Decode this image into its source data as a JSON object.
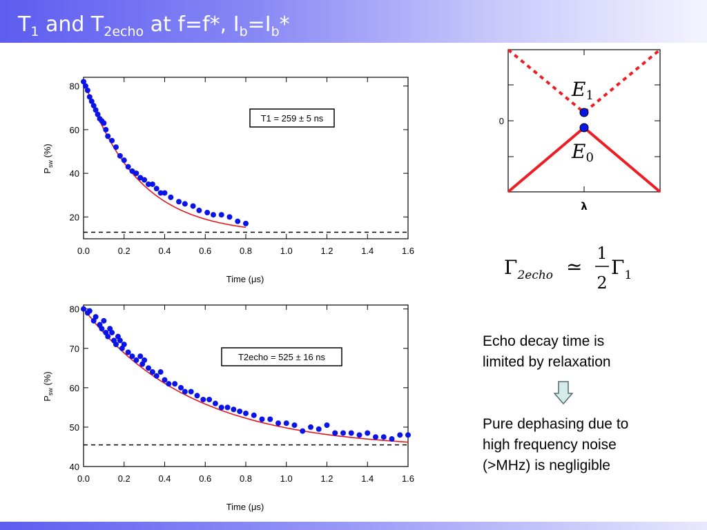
{
  "slide": {
    "title_parts": {
      "t": "T",
      "sub1": "1",
      "and": " and T",
      "sub2": "2echo",
      "mid": " at f=f*, I",
      "sub3": "b",
      "eq": "=I",
      "sub4": "b",
      "end": "*"
    },
    "formula": {
      "lhs": "Γ",
      "lhs_sub": "2echo",
      "rel": "≃",
      "num": "1",
      "den": "2",
      "rhs": "Γ",
      "rhs_sub": "1"
    },
    "note1_lines": [
      "Echo decay time is",
      "limited by relaxation"
    ],
    "note2_lines": [
      "Pure dephasing due to",
      "high frequency noise",
      "(>MHz) is negligible"
    ],
    "colors": {
      "points": "#0a14e6",
      "fit": "#e8141c",
      "energy": "#ee1c24",
      "title_bar": "#5d5df0"
    }
  },
  "chart_data": [
    {
      "type": "scatter",
      "xlabel": "Time (μs)",
      "ylabel": "Psw (%)",
      "ylabel_main": "P",
      "ylabel_sub": "sw",
      "ylabel_unit": " (%)",
      "xlim": [
        0,
        1.6
      ],
      "ylim": [
        10,
        84
      ],
      "xticks": [
        "0.0",
        "0.2",
        "0.4",
        "0.6",
        "0.8",
        "1.0",
        "1.2",
        "1.4",
        "1.6"
      ],
      "yticks": [
        "20",
        "40",
        "60",
        "80"
      ],
      "annotation": "T1 = 259 ± 5 ns",
      "baseline": 13,
      "fit": {
        "a": 71,
        "tau": 0.259,
        "c": 12
      },
      "series": [
        {
          "kind": "data",
          "x": [
            0.0,
            0.01,
            0.02,
            0.03,
            0.04,
            0.05,
            0.06,
            0.07,
            0.08,
            0.09,
            0.1,
            0.11,
            0.12,
            0.14,
            0.16,
            0.18,
            0.2,
            0.22,
            0.24,
            0.26,
            0.28,
            0.3,
            0.32,
            0.34,
            0.36,
            0.38,
            0.4,
            0.43,
            0.47,
            0.5,
            0.54,
            0.57,
            0.61,
            0.64,
            0.68,
            0.72,
            0.76,
            0.8
          ],
          "y": [
            82,
            80,
            78,
            75,
            73,
            71,
            69,
            67,
            65,
            64,
            63,
            60,
            57,
            55,
            52,
            48,
            46,
            43,
            41,
            40,
            38,
            37,
            35,
            35,
            33,
            31,
            31,
            29,
            27,
            26,
            25,
            23,
            22,
            21,
            21,
            20,
            18,
            17
          ]
        }
      ]
    },
    {
      "type": "scatter",
      "xlabel": "Time (μs)",
      "ylabel": "Psw (%)",
      "ylabel_main": "P",
      "ylabel_sub": "sw",
      "ylabel_unit": " (%)",
      "xlim": [
        0,
        1.6
      ],
      "ylim": [
        40,
        81
      ],
      "xticks": [
        "0.0",
        "0.2",
        "0.4",
        "0.6",
        "0.8",
        "1.0",
        "1.2",
        "1.4",
        "1.6"
      ],
      "yticks": [
        "40",
        "50",
        "60",
        "70",
        "80"
      ],
      "annotation": "T2echo = 525 ± 16 ns",
      "baseline": 45.5,
      "fit": {
        "a": 35.6,
        "tau": 0.525,
        "c": 44.5
      },
      "series": [
        {
          "kind": "data",
          "x": [
            0.0,
            0.02,
            0.03,
            0.05,
            0.06,
            0.08,
            0.09,
            0.1,
            0.11,
            0.12,
            0.13,
            0.14,
            0.15,
            0.16,
            0.17,
            0.18,
            0.19,
            0.2,
            0.22,
            0.24,
            0.26,
            0.28,
            0.29,
            0.3,
            0.32,
            0.34,
            0.36,
            0.38,
            0.4,
            0.42,
            0.45,
            0.48,
            0.5,
            0.53,
            0.56,
            0.59,
            0.62,
            0.65,
            0.68,
            0.71,
            0.74,
            0.77,
            0.8,
            0.84,
            0.88,
            0.92,
            0.96,
            1.0,
            1.04,
            1.08,
            1.12,
            1.16,
            1.2,
            1.24,
            1.28,
            1.32,
            1.36,
            1.4,
            1.44,
            1.48,
            1.52,
            1.56,
            1.6
          ],
          "y": [
            80,
            79,
            79.5,
            77,
            78,
            76,
            75,
            77,
            74,
            73,
            75,
            74,
            72,
            71,
            73,
            72,
            70,
            71,
            69,
            68,
            67,
            68,
            66,
            67,
            65,
            64,
            63,
            64,
            62,
            61,
            61,
            60,
            59,
            59,
            58,
            57,
            57,
            56,
            55,
            55,
            54.5,
            54,
            53.5,
            53,
            52,
            52,
            51,
            51,
            50.5,
            49,
            50,
            49.5,
            50.5,
            48.5,
            48.5,
            48.5,
            48,
            48.5,
            47.5,
            47.5,
            47,
            48,
            48
          ]
        }
      ]
    },
    {
      "type": "line",
      "xlabel": "λ",
      "ylabel": "",
      "yticks": [
        "0"
      ],
      "series": [
        {
          "name": "E1",
          "style": "dashed",
          "x": [
            -1,
            0,
            1
          ],
          "y": [
            1,
            0.1,
            1
          ]
        },
        {
          "name": "E0",
          "style": "solid",
          "x": [
            -1,
            0,
            1
          ],
          "y": [
            -1,
            -0.1,
            -1
          ]
        }
      ],
      "labels": {
        "e1": "E",
        "e1_sub": "1",
        "e0": "E",
        "e0_sub": "0"
      },
      "xlim": [
        -1,
        1
      ],
      "ylim": [
        -1,
        1
      ]
    }
  ]
}
